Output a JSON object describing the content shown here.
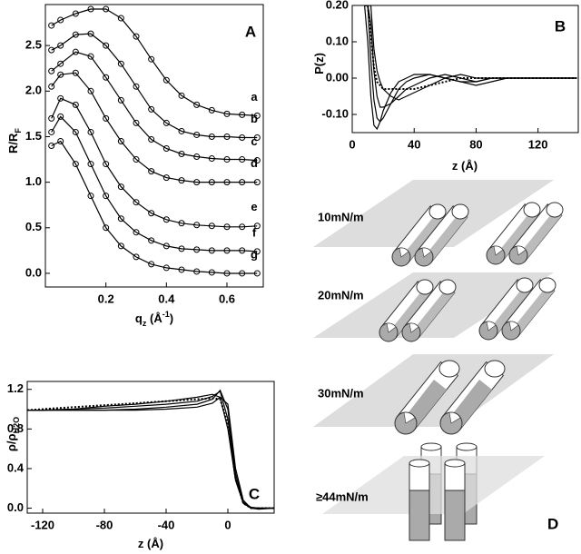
{
  "chart_data": [
    {
      "type": "line",
      "panel": "A",
      "marker": "circle",
      "xlabel": {
        "text": "q",
        "sub": "z",
        "text2": " (Å",
        "sup": "-1",
        "text3": ")"
      },
      "ylabel": {
        "text": "R/R",
        "sub": "F"
      },
      "xlim": [
        0,
        0.72
      ],
      "ylim": [
        -0.15,
        2.95
      ],
      "xticks": [
        0.2,
        0.4,
        0.6
      ],
      "yticks": [
        {
          "value": 0,
          "label": "0.0"
        },
        0.5,
        {
          "value": 1,
          "label": "1.0"
        },
        1.5,
        {
          "value": 2,
          "label": "2.0"
        },
        2.5
      ],
      "x": [
        0.02,
        0.05,
        0.1,
        0.15,
        0.2,
        0.25,
        0.3,
        0.35,
        0.4,
        0.45,
        0.5,
        0.55,
        0.6,
        0.65,
        0.7
      ],
      "series": [
        {
          "name": "a",
          "color": "#000",
          "values": [
            2.72,
            2.78,
            2.85,
            2.9,
            2.9,
            2.8,
            2.6,
            2.35,
            2.12,
            1.95,
            1.85,
            1.79,
            1.75,
            1.74,
            1.73
          ]
        },
        {
          "name": "b",
          "color": "#000",
          "values": [
            2.45,
            2.5,
            2.62,
            2.63,
            2.5,
            2.3,
            2.05,
            1.8,
            1.65,
            1.56,
            1.52,
            1.5,
            1.5,
            1.49,
            1.49
          ]
        },
        {
          "name": "c",
          "color": "#000",
          "values": [
            2.22,
            2.3,
            2.43,
            2.38,
            2.15,
            1.9,
            1.65,
            1.47,
            1.37,
            1.31,
            1.28,
            1.26,
            1.25,
            1.25,
            1.24
          ]
        },
        {
          "name": "d",
          "color": "#000",
          "values": [
            2.05,
            2.18,
            2.2,
            2.0,
            1.7,
            1.45,
            1.25,
            1.12,
            1.05,
            1.02,
            1.0,
            1.0,
            1.0,
            1.0,
            1.0
          ]
        },
        {
          "name": "e",
          "color": "#000",
          "values": [
            1.7,
            1.92,
            1.85,
            1.55,
            1.2,
            0.95,
            0.78,
            0.66,
            0.59,
            0.55,
            0.53,
            0.52,
            0.51,
            0.51,
            0.52
          ]
        },
        {
          "name": "f",
          "color": "#000",
          "values": [
            1.55,
            1.72,
            1.55,
            1.2,
            0.85,
            0.6,
            0.45,
            0.36,
            0.3,
            0.27,
            0.26,
            0.25,
            0.25,
            0.25,
            0.24
          ]
        },
        {
          "name": "g",
          "color": "#000",
          "values": [
            1.4,
            1.45,
            1.2,
            0.85,
            0.5,
            0.3,
            0.18,
            0.1,
            0.06,
            0.04,
            0.02,
            0.01,
            0.0,
            0.0,
            0.0
          ]
        }
      ]
    },
    {
      "type": "line",
      "panel": "B",
      "xlabel": {
        "text": "z (Å)"
      },
      "ylabel": {
        "text": "P(z)"
      },
      "xlim": [
        0,
        146
      ],
      "ylim": [
        -0.15,
        0.2
      ],
      "xticks": [
        0,
        40,
        80,
        120
      ],
      "yticks": [
        {
          "value": -0.1,
          "label": "-0.10"
        },
        {
          "value": 0,
          "label": "0.00"
        },
        {
          "value": 0.1,
          "label": "0.10"
        },
        {
          "value": 0.2,
          "label": "0.20"
        }
      ],
      "x": [
        8,
        10,
        12,
        14,
        16,
        18,
        20,
        25,
        30,
        35,
        40,
        50,
        60,
        70,
        80,
        90,
        100,
        120,
        145
      ],
      "series": [
        {
          "color": "#000",
          "values": [
            0.2,
            0.1,
            -0.05,
            -0.13,
            -0.14,
            -0.12,
            -0.09,
            -0.04,
            -0.01,
            0.0,
            0.01,
            0.01,
            0.0,
            -0.01,
            -0.02,
            -0.01,
            0.0,
            0.0,
            0.0
          ]
        },
        {
          "color": "#000",
          "values": [
            0.2,
            0.2,
            0.05,
            -0.06,
            -0.11,
            -0.12,
            -0.11,
            -0.07,
            -0.03,
            -0.01,
            0.0,
            0.01,
            0.0,
            -0.01,
            -0.01,
            0.0,
            0.0,
            0.0,
            0.0
          ]
        },
        {
          "color": "#000",
          "values": [
            0.2,
            0.2,
            0.15,
            0.02,
            -0.05,
            -0.08,
            -0.08,
            -0.07,
            -0.05,
            -0.03,
            -0.02,
            0.0,
            0.01,
            0.0,
            -0.01,
            0.0,
            0.0,
            0.0,
            0.0
          ]
        },
        {
          "color": "#000",
          "values": [
            0.2,
            0.2,
            0.2,
            0.08,
            0.02,
            -0.01,
            -0.03,
            -0.05,
            -0.06,
            -0.05,
            -0.04,
            -0.02,
            0.0,
            0.01,
            0.0,
            0.0,
            0.0,
            0.0,
            0.0
          ]
        },
        {
          "color": "#000",
          "style": "dotted",
          "values": [
            0.2,
            0.2,
            0.12,
            0.03,
            -0.01,
            -0.02,
            -0.03,
            -0.03,
            -0.03,
            -0.03,
            -0.03,
            -0.02,
            -0.01,
            0.0,
            0.0,
            0.0,
            0.0,
            0.0,
            0.0
          ]
        }
      ]
    },
    {
      "type": "line",
      "panel": "C",
      "xlabel": {
        "text": "z (Å)"
      },
      "ylabel": {
        "text": "ρ/ρ",
        "sub": "H2O"
      },
      "xlim": [
        -130,
        30
      ],
      "ylim": [
        -0.05,
        1.28
      ],
      "xticks": [
        -120,
        -80,
        -40,
        0
      ],
      "yticks": [
        {
          "value": 0,
          "label": "0.0"
        },
        0.4,
        0.8,
        1.2
      ],
      "x": [
        -130,
        -120,
        -100,
        -80,
        -60,
        -40,
        -20,
        -10,
        -5,
        0,
        5,
        10,
        15,
        20,
        30
      ],
      "series": [
        {
          "color": "#000",
          "style": "dotted",
          "values": [
            0.99,
            1.0,
            1.02,
            1.04,
            1.06,
            1.08,
            1.1,
            1.11,
            1.1,
            0.85,
            0.3,
            0.05,
            0.0,
            0.0,
            0.0
          ]
        },
        {
          "color": "#000",
          "values": [
            0.99,
            0.99,
            1.0,
            1.03,
            1.05,
            1.08,
            1.12,
            1.15,
            1.12,
            0.8,
            0.28,
            0.05,
            0.0,
            0.0,
            0.0
          ]
        },
        {
          "color": "#000",
          "values": [
            0.99,
            0.99,
            1.0,
            1.01,
            1.03,
            1.05,
            1.08,
            1.13,
            1.18,
            0.9,
            0.3,
            0.05,
            0.0,
            0.0,
            0.0
          ]
        },
        {
          "color": "#000",
          "values": [
            0.99,
            0.99,
            0.99,
            0.99,
            1.0,
            1.02,
            1.05,
            1.1,
            1.19,
            1.0,
            0.35,
            0.06,
            0.01,
            0.0,
            0.0
          ]
        },
        {
          "color": "#000",
          "values": [
            0.99,
            0.99,
            0.99,
            0.99,
            0.99,
            1.0,
            1.02,
            1.06,
            1.12,
            1.05,
            0.4,
            0.08,
            0.0,
            -0.01,
            0.0
          ]
        }
      ]
    }
  ],
  "diagram": {
    "panel": "D",
    "labels": [
      "10mN/m",
      "20mN/m",
      "30mN/m",
      "≥44mN/m"
    ]
  }
}
